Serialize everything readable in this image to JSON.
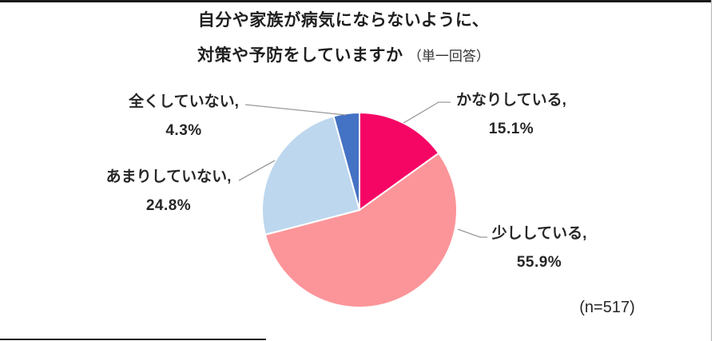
{
  "title": {
    "line1": "自分や家族が病気にならないように、",
    "line2_main": "対策や予防をしていますか",
    "line2_note": "（単一回答）"
  },
  "sample_size_note": "(n=517)",
  "chart_data": {
    "type": "pie",
    "title": "自分や家族が病気にならないように、対策や予防をしていますか（単一回答）",
    "n": 517,
    "start_angle": "top",
    "direction": "clockwise",
    "legend_position": "callout-labels",
    "segments": [
      {
        "label": "かなりしている",
        "value": 15.1,
        "color": "#F50564",
        "callout_line1": "かなりしている,",
        "callout_line2": "15.1%"
      },
      {
        "label": "少ししている",
        "value": 55.9,
        "color": "#FC9599",
        "callout_line1": "少ししている,",
        "callout_line2": "55.9%"
      },
      {
        "label": "あまりしていない",
        "value": 24.8,
        "color": "#BDD7EE",
        "callout_line1": "あまりしていない,",
        "callout_line2": "24.8%"
      },
      {
        "label": "全くしていない",
        "value": 4.3,
        "color": "#4472C4",
        "callout_line1": "全くしていない,",
        "callout_line2": "4.3%"
      }
    ]
  },
  "style": {
    "slice_border_color": "#ffffff",
    "leader_line_color": "#999999"
  }
}
